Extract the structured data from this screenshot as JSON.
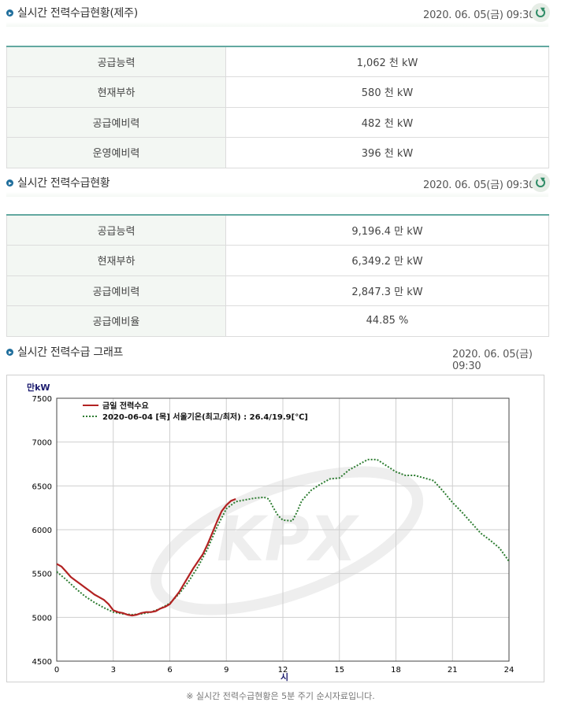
{
  "jeju": {
    "title": "실시간 전력수급현황(제주)",
    "time": "2020. 06. 05(금) 09:30",
    "rows": [
      {
        "label": "공급능력",
        "value": "1,062 천 kW"
      },
      {
        "label": "현재부하",
        "value": "580 천 kW"
      },
      {
        "label": "공급예비력",
        "value": "482 천 kW"
      },
      {
        "label": "운영예비력",
        "value": "396 천 kW"
      }
    ]
  },
  "national": {
    "title": "실시간 전력수급현황",
    "time": "2020. 06. 05(금) 09:30",
    "rows": [
      {
        "label": "공급능력",
        "value": "9,196.4 만 kW"
      },
      {
        "label": "현재부하",
        "value": "6,349.2 만 kW"
      },
      {
        "label": "공급예비력",
        "value": "2,847.3 만 kW"
      },
      {
        "label": "공급예비율",
        "value": "44.85 %"
      }
    ]
  },
  "graph": {
    "title": "실시간 전력수급 그래프",
    "time": "2020. 06. 05(금) 09:30"
  },
  "footer_note": "※ 실시간 전력수급현황은 5분 주기 순시자료입니다.",
  "chart_data": {
    "type": "line",
    "ylabel": "만kW",
    "xlabel": "시",
    "xlim": [
      0,
      24
    ],
    "ylim": [
      4500,
      7500
    ],
    "x_ticks": [
      0,
      3,
      6,
      9,
      12,
      15,
      18,
      21,
      24
    ],
    "y_ticks": [
      4500,
      5000,
      5500,
      6000,
      6500,
      7000,
      7500
    ],
    "grid": true,
    "legend_position": "top-left",
    "watermark": "KPX",
    "series": [
      {
        "name": "금일 전력수요",
        "color": "#b22222",
        "style": "solid",
        "points": [
          [
            0,
            5610
          ],
          [
            0.25,
            5580
          ],
          [
            0.5,
            5520
          ],
          [
            0.75,
            5460
          ],
          [
            1,
            5420
          ],
          [
            1.25,
            5380
          ],
          [
            1.5,
            5340
          ],
          [
            1.75,
            5300
          ],
          [
            2,
            5260
          ],
          [
            2.25,
            5230
          ],
          [
            2.5,
            5200
          ],
          [
            2.75,
            5150
          ],
          [
            3,
            5080
          ],
          [
            3.25,
            5060
          ],
          [
            3.5,
            5050
          ],
          [
            3.75,
            5030
          ],
          [
            4,
            5020
          ],
          [
            4.25,
            5030
          ],
          [
            4.5,
            5050
          ],
          [
            4.75,
            5060
          ],
          [
            5,
            5060
          ],
          [
            5.25,
            5070
          ],
          [
            5.5,
            5100
          ],
          [
            5.75,
            5120
          ],
          [
            6,
            5150
          ],
          [
            6.25,
            5220
          ],
          [
            6.5,
            5290
          ],
          [
            6.75,
            5380
          ],
          [
            7,
            5470
          ],
          [
            7.25,
            5560
          ],
          [
            7.5,
            5640
          ],
          [
            7.75,
            5720
          ],
          [
            8,
            5830
          ],
          [
            8.25,
            5960
          ],
          [
            8.5,
            6090
          ],
          [
            8.75,
            6210
          ],
          [
            9,
            6280
          ],
          [
            9.25,
            6330
          ],
          [
            9.5,
            6350
          ]
        ]
      },
      {
        "name": "2020-06-04 [목] 서울기온(최고/최저) : 26.4/19.9[℃]",
        "color": "#2e7d32",
        "style": "dotted",
        "points": [
          [
            0,
            5520
          ],
          [
            0.5,
            5430
          ],
          [
            1,
            5330
          ],
          [
            1.5,
            5240
          ],
          [
            2,
            5170
          ],
          [
            2.5,
            5110
          ],
          [
            3,
            5060
          ],
          [
            3.5,
            5040
          ],
          [
            4,
            5030
          ],
          [
            4.5,
            5040
          ],
          [
            5,
            5060
          ],
          [
            5.5,
            5100
          ],
          [
            6,
            5160
          ],
          [
            6.5,
            5270
          ],
          [
            7,
            5410
          ],
          [
            7.5,
            5580
          ],
          [
            8,
            5780
          ],
          [
            8.5,
            6030
          ],
          [
            9,
            6240
          ],
          [
            9.5,
            6320
          ],
          [
            10,
            6340
          ],
          [
            10.5,
            6360
          ],
          [
            11,
            6370
          ],
          [
            11.25,
            6350
          ],
          [
            11.5,
            6250
          ],
          [
            11.75,
            6160
          ],
          [
            12,
            6110
          ],
          [
            12.5,
            6100
          ],
          [
            12.75,
            6200
          ],
          [
            13,
            6330
          ],
          [
            13.5,
            6450
          ],
          [
            14,
            6520
          ],
          [
            14.5,
            6580
          ],
          [
            15,
            6590
          ],
          [
            15.5,
            6680
          ],
          [
            16,
            6740
          ],
          [
            16.5,
            6800
          ],
          [
            17,
            6800
          ],
          [
            17.5,
            6730
          ],
          [
            18,
            6660
          ],
          [
            18.5,
            6620
          ],
          [
            19,
            6620
          ],
          [
            19.5,
            6590
          ],
          [
            20,
            6560
          ],
          [
            20.5,
            6440
          ],
          [
            21,
            6310
          ],
          [
            21.5,
            6200
          ],
          [
            22,
            6080
          ],
          [
            22.5,
            5960
          ],
          [
            23,
            5880
          ],
          [
            23.5,
            5790
          ],
          [
            24,
            5640
          ]
        ]
      }
    ]
  }
}
